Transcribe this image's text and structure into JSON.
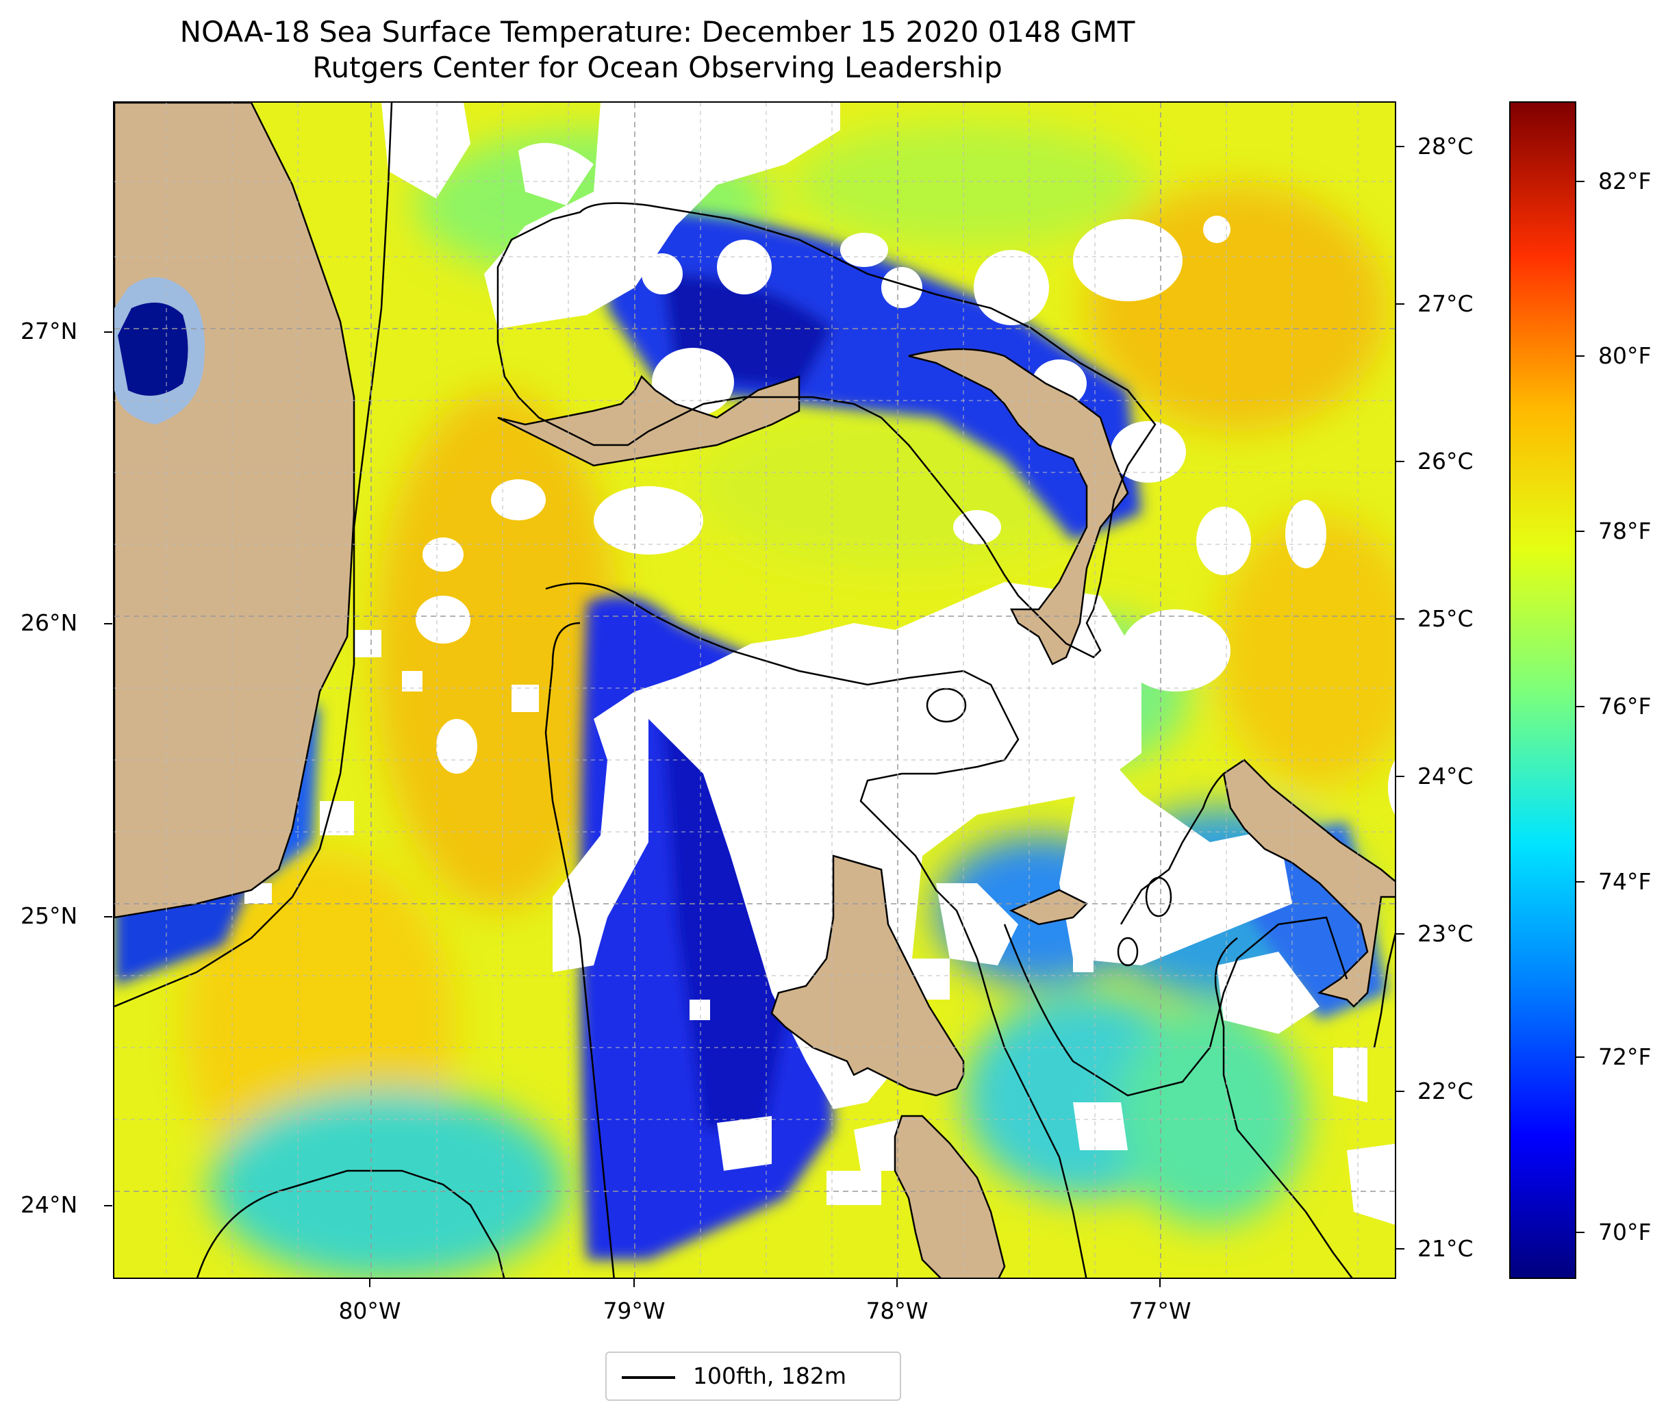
{
  "title": {
    "line1": "NOAA-18 Sea Surface Temperature: December 15 2020 0148 GMT",
    "line2": "Rutgers Center for Ocean Observing Leadership"
  },
  "axes": {
    "lat_ticks": [
      "27°N",
      "26°N",
      "25°N",
      "24°N"
    ],
    "lon_ticks": [
      "80°W",
      "79°W",
      "78°W",
      "77°W"
    ],
    "lon_range": [
      -80.95,
      -76.05
    ],
    "lat_range": [
      23.75,
      27.8
    ],
    "grid": true
  },
  "colorbar": {
    "celsius_ticks": [
      "28°C",
      "27°C",
      "26°C",
      "25°C",
      "24°C",
      "23°C",
      "22°C",
      "21°C"
    ],
    "fahrenheit_ticks": [
      "82°F",
      "80°F",
      "78°F",
      "76°F",
      "74°F",
      "72°F",
      "70°F"
    ],
    "colormap": "jet",
    "range_f": [
      69.4,
      83.4
    ]
  },
  "legend": {
    "label": "100fth, 182m"
  },
  "colors": {
    "land": "#d2b48c",
    "lake": "#9ebbe0",
    "no_data": "#ffffff"
  }
}
